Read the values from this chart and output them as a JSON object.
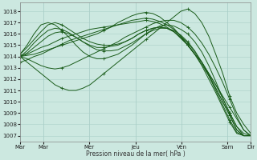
{
  "bg_color": "#cce8e0",
  "grid_color": "#aacfc8",
  "line_color": "#1a5c1a",
  "xlabel": "Pression niveau de la mer( hPa )",
  "ylim": [
    1006.5,
    1018.8
  ],
  "yticks": [
    1007,
    1008,
    1009,
    1010,
    1011,
    1012,
    1013,
    1014,
    1015,
    1016,
    1017,
    1018
  ],
  "xtick_labels": [
    "Mar",
    "Mar",
    "Mer",
    "Jeu",
    "Ven",
    "Sam",
    "Dir"
  ],
  "xtick_positions": [
    0,
    24,
    72,
    120,
    168,
    216,
    240
  ],
  "x_total": 240,
  "lines": [
    [
      1014.0,
      1014.1,
      1014.2,
      1014.4,
      1014.6,
      1014.8,
      1015.0,
      1015.2,
      1015.4,
      1015.6,
      1015.8,
      1016.0,
      1016.3,
      1016.6,
      1017.0,
      1017.3,
      1017.6,
      1017.8,
      1017.9,
      1017.8,
      1017.5,
      1017.0,
      1016.5,
      1015.8,
      1015.0,
      1014.2,
      1013.5,
      1012.5,
      1011.5,
      1010.5,
      1009.5,
      1008.5,
      1007.5,
      1007.0
    ],
    [
      1014.0,
      1014.2,
      1014.5,
      1014.8,
      1015.0,
      1015.3,
      1015.6,
      1015.8,
      1016.0,
      1016.2,
      1016.4,
      1016.5,
      1016.6,
      1016.7,
      1016.8,
      1016.9,
      1017.0,
      1017.1,
      1017.2,
      1017.1,
      1016.9,
      1016.6,
      1016.2,
      1015.6,
      1015.0,
      1014.2,
      1013.5,
      1012.5,
      1011.5,
      1010.3,
      1009.0,
      1007.8,
      1007.2,
      1007.0
    ],
    [
      1014.2,
      1014.8,
      1015.5,
      1016.2,
      1016.8,
      1017.0,
      1016.8,
      1016.4,
      1016.0,
      1015.6,
      1015.3,
      1015.1,
      1015.0,
      1015.0,
      1015.1,
      1015.3,
      1015.6,
      1016.0,
      1016.3,
      1016.5,
      1016.6,
      1016.5,
      1016.2,
      1015.7,
      1015.0,
      1014.2,
      1013.3,
      1012.3,
      1011.2,
      1010.0,
      1008.8,
      1007.5,
      1007.0,
      1007.0
    ],
    [
      1014.0,
      1014.5,
      1015.2,
      1015.8,
      1016.3,
      1016.5,
      1016.4,
      1016.1,
      1015.7,
      1015.3,
      1015.0,
      1014.8,
      1014.8,
      1014.9,
      1015.0,
      1015.3,
      1015.6,
      1016.0,
      1016.3,
      1016.5,
      1016.6,
      1016.5,
      1016.2,
      1015.7,
      1015.0,
      1014.2,
      1013.2,
      1012.0,
      1010.8,
      1009.5,
      1008.2,
      1007.2,
      1007.0,
      1007.0
    ],
    [
      1014.0,
      1014.3,
      1014.8,
      1015.3,
      1015.8,
      1016.1,
      1016.2,
      1016.0,
      1015.7,
      1015.3,
      1014.9,
      1014.6,
      1014.5,
      1014.5,
      1014.6,
      1014.9,
      1015.2,
      1015.6,
      1016.0,
      1016.3,
      1016.5,
      1016.5,
      1016.3,
      1015.9,
      1015.3,
      1014.5,
      1013.5,
      1012.3,
      1011.0,
      1009.7,
      1008.4,
      1007.3,
      1007.0,
      1007.0
    ],
    [
      1014.2,
      1015.0,
      1016.0,
      1016.8,
      1017.0,
      1016.8,
      1016.3,
      1015.7,
      1015.0,
      1014.4,
      1014.0,
      1013.8,
      1013.8,
      1014.0,
      1014.2,
      1014.6,
      1015.0,
      1015.5,
      1016.0,
      1016.4,
      1016.7,
      1016.8,
      1016.7,
      1016.4,
      1016.0,
      1015.3,
      1014.4,
      1013.2,
      1011.8,
      1010.3,
      1009.0,
      1007.8,
      1007.0,
      1007.0
    ],
    [
      1013.5,
      1013.7,
      1014.0,
      1014.2,
      1014.5,
      1014.8,
      1015.1,
      1015.4,
      1015.6,
      1015.8,
      1016.0,
      1016.2,
      1016.4,
      1016.6,
      1016.8,
      1017.0,
      1017.2,
      1017.3,
      1017.4,
      1017.3,
      1017.1,
      1016.8,
      1016.4,
      1015.8,
      1015.2,
      1014.4,
      1013.5,
      1012.4,
      1011.2,
      1010.0,
      1008.8,
      1007.5,
      1007.0,
      1007.0
    ],
    [
      1014.0,
      1013.8,
      1013.5,
      1013.2,
      1013.0,
      1012.9,
      1013.0,
      1013.2,
      1013.5,
      1013.8,
      1014.1,
      1014.4,
      1014.7,
      1015.0,
      1015.3,
      1015.7,
      1016.0,
      1016.3,
      1016.6,
      1016.9,
      1017.1,
      1017.2,
      1017.2,
      1017.0,
      1016.6,
      1016.0,
      1015.2,
      1014.2,
      1013.0,
      1011.7,
      1010.2,
      1008.7,
      1007.5,
      1007.0
    ],
    [
      1014.0,
      1013.5,
      1013.0,
      1012.5,
      1012.0,
      1011.5,
      1011.2,
      1011.0,
      1011.0,
      1011.2,
      1011.5,
      1012.0,
      1012.5,
      1013.0,
      1013.5,
      1014.0,
      1014.5,
      1015.0,
      1015.5,
      1016.0,
      1016.5,
      1017.0,
      1017.5,
      1018.0,
      1018.2,
      1017.8,
      1017.0,
      1015.8,
      1014.2,
      1012.5,
      1010.5,
      1009.0,
      1008.0,
      1007.2
    ]
  ],
  "marker_every": 6
}
